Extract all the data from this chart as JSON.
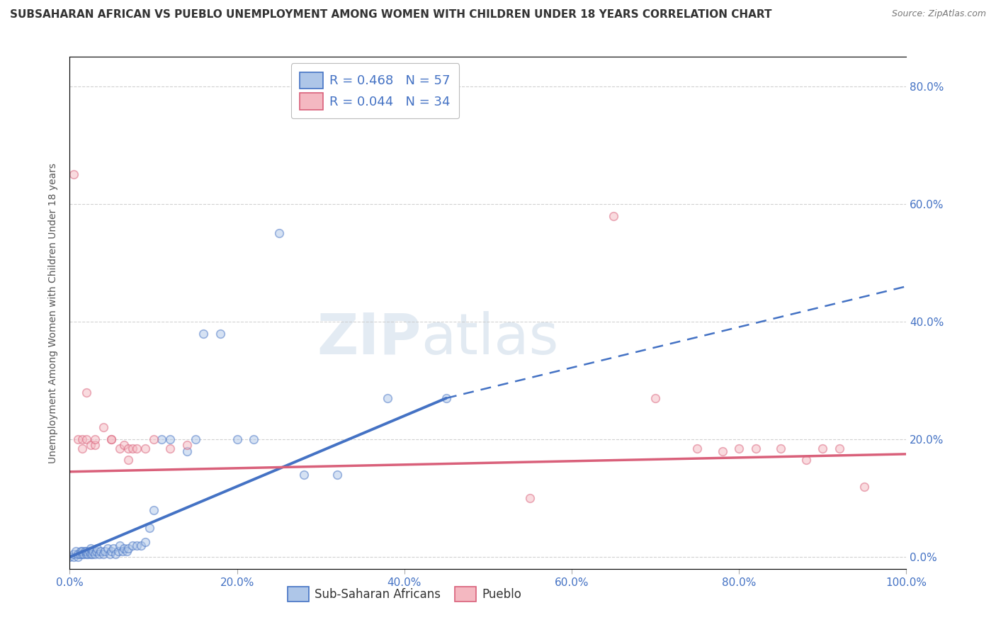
{
  "title": "SUBSAHARAN AFRICAN VS PUEBLO UNEMPLOYMENT AMONG WOMEN WITH CHILDREN UNDER 18 YEARS CORRELATION CHART",
  "source": "Source: ZipAtlas.com",
  "ylabel": "Unemployment Among Women with Children Under 18 years",
  "legend1_label": "R = 0.468   N = 57",
  "legend2_label": "R = 0.044   N = 34",
  "legend1_face": "#aec6e8",
  "legend2_face": "#f4b8c1",
  "line1_color": "#4472c4",
  "line2_color": "#d9607a",
  "watermark_zip": "ZIP",
  "watermark_atlas": "atlas",
  "blue_scatter_x": [
    0.0,
    0.005,
    0.005,
    0.007,
    0.01,
    0.01,
    0.012,
    0.013,
    0.015,
    0.015,
    0.017,
    0.018,
    0.02,
    0.02,
    0.022,
    0.023,
    0.025,
    0.025,
    0.027,
    0.028,
    0.03,
    0.032,
    0.033,
    0.035,
    0.037,
    0.04,
    0.042,
    0.045,
    0.048,
    0.05,
    0.052,
    0.055,
    0.058,
    0.06,
    0.063,
    0.065,
    0.068,
    0.07,
    0.075,
    0.08,
    0.085,
    0.09,
    0.095,
    0.1,
    0.11,
    0.12,
    0.14,
    0.15,
    0.16,
    0.18,
    0.2,
    0.22,
    0.25,
    0.28,
    0.32,
    0.38,
    0.45
  ],
  "blue_scatter_y": [
    0.0,
    0.0,
    0.005,
    0.01,
    0.0,
    0.005,
    0.005,
    0.01,
    0.005,
    0.01,
    0.005,
    0.01,
    0.005,
    0.01,
    0.005,
    0.01,
    0.005,
    0.015,
    0.005,
    0.01,
    0.005,
    0.01,
    0.015,
    0.005,
    0.01,
    0.005,
    0.01,
    0.015,
    0.005,
    0.01,
    0.015,
    0.005,
    0.01,
    0.02,
    0.01,
    0.015,
    0.01,
    0.015,
    0.02,
    0.02,
    0.02,
    0.025,
    0.05,
    0.08,
    0.2,
    0.2,
    0.18,
    0.2,
    0.38,
    0.38,
    0.2,
    0.2,
    0.55,
    0.14,
    0.14,
    0.27,
    0.27
  ],
  "pink_scatter_x": [
    0.005,
    0.01,
    0.015,
    0.015,
    0.02,
    0.025,
    0.03,
    0.04,
    0.05,
    0.06,
    0.065,
    0.07,
    0.075,
    0.08,
    0.09,
    0.1,
    0.12,
    0.14,
    0.55,
    0.65,
    0.7,
    0.75,
    0.78,
    0.8,
    0.82,
    0.85,
    0.88,
    0.9,
    0.92,
    0.95,
    0.02,
    0.03,
    0.05,
    0.07
  ],
  "pink_scatter_y": [
    0.65,
    0.2,
    0.2,
    0.185,
    0.2,
    0.19,
    0.19,
    0.22,
    0.2,
    0.185,
    0.19,
    0.185,
    0.185,
    0.185,
    0.185,
    0.2,
    0.185,
    0.19,
    0.1,
    0.58,
    0.27,
    0.185,
    0.18,
    0.185,
    0.185,
    0.185,
    0.165,
    0.185,
    0.185,
    0.12,
    0.28,
    0.2,
    0.2,
    0.165
  ],
  "blue_line_x0": 0.0,
  "blue_line_y0": 0.0,
  "blue_line_xmid": 0.45,
  "blue_line_ymid": 0.27,
  "blue_line_x1": 1.0,
  "blue_line_y1": 0.46,
  "pink_line_x0": 0.0,
  "pink_line_y0": 0.145,
  "pink_line_x1": 1.0,
  "pink_line_y1": 0.175,
  "xlim": [
    0.0,
    1.0
  ],
  "ylim": [
    -0.02,
    0.85
  ],
  "yticks": [
    0.0,
    0.2,
    0.4,
    0.6,
    0.8
  ],
  "xticks": [
    0.0,
    0.2,
    0.4,
    0.6,
    0.8,
    1.0
  ],
  "grid_color": "#cccccc",
  "bg_color": "#ffffff",
  "scatter_alpha": 0.5,
  "scatter_size": 70,
  "bottom_legend_labels": [
    "Sub-Saharan Africans",
    "Pueblo"
  ]
}
